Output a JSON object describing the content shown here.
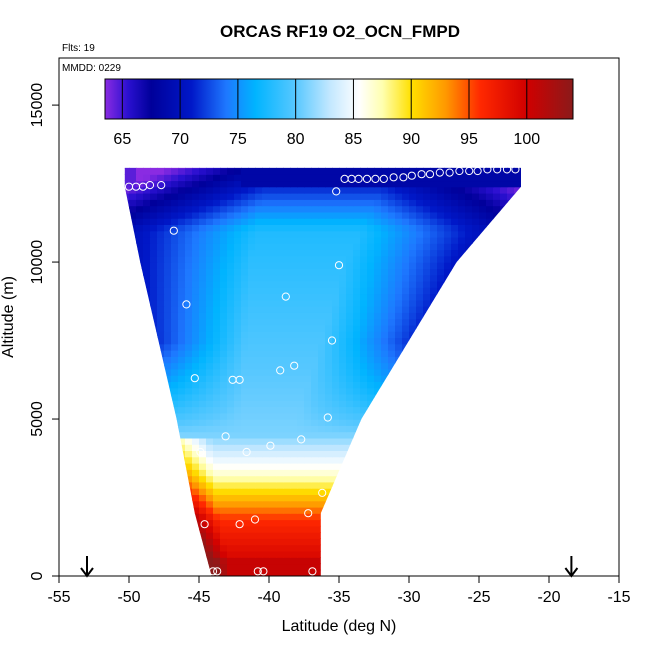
{
  "chart_data": {
    "type": "heatmap",
    "title": "ORCAS RF19 O2_OCN_FMPD",
    "flights_note": "Flts: 19",
    "date_note": "MMDD: 0229",
    "xlabel": "Latitude (deg N)",
    "ylabel": "Altitude (m)",
    "xlim": [
      -55,
      -15
    ],
    "ylim": [
      0,
      16500
    ],
    "x_ticks": [
      -55,
      -50,
      -45,
      -40,
      -35,
      -30,
      -25,
      -20,
      -15
    ],
    "x_tick_labels": [
      "-55",
      "-50",
      "-45",
      "-40",
      "-35",
      "-30",
      "-25",
      "-20",
      "-15"
    ],
    "y_ticks": [
      0,
      5000,
      10000,
      15000
    ],
    "y_tick_labels": [
      "0",
      "5000",
      "10000",
      "15000"
    ],
    "colorbar": {
      "range": [
        63.5,
        104
      ],
      "ticks": [
        65,
        70,
        75,
        80,
        85,
        90,
        95,
        100
      ],
      "tick_labels": [
        "65",
        "70",
        "75",
        "80",
        "85",
        "90",
        "95",
        "100"
      ],
      "stops": [
        {
          "v": 63.5,
          "c": "#8a2be2"
        },
        {
          "v": 65.5,
          "c": "#2a10d0"
        },
        {
          "v": 67.5,
          "c": "#00009a"
        },
        {
          "v": 71,
          "c": "#0018c8"
        },
        {
          "v": 74,
          "c": "#1e78ff"
        },
        {
          "v": 76.5,
          "c": "#00b4ff"
        },
        {
          "v": 80,
          "c": "#58c8ff"
        },
        {
          "v": 83,
          "c": "#c4e8ff"
        },
        {
          "v": 85.5,
          "c": "#ffffff"
        },
        {
          "v": 87.5,
          "c": "#ffffb0"
        },
        {
          "v": 90,
          "c": "#ffe000"
        },
        {
          "v": 93,
          "c": "#ff9800"
        },
        {
          "v": 96,
          "c": "#ff2800"
        },
        {
          "v": 100,
          "c": "#d00000"
        },
        {
          "v": 104,
          "c": "#8b1a1a"
        }
      ]
    },
    "field_region": {
      "description_lat_bounds_by_altitude": [
        {
          "alt": 0,
          "lat_min": -44.1,
          "lat_max": -36.3
        },
        {
          "alt": 2000,
          "lat_min": -45.3,
          "lat_max": -36.3
        },
        {
          "alt": 5000,
          "lat_min": -46.6,
          "lat_max": -33.4
        },
        {
          "alt": 10000,
          "lat_min": -49.2,
          "lat_max": -26.6
        },
        {
          "alt": 12400,
          "lat_min": -50.3,
          "lat_max": -22.0
        },
        {
          "alt": 13000,
          "lat_min": -50.3,
          "lat_max": -22.0
        }
      ]
    },
    "legend_arrows_lat": [
      -53,
      -18.4
    ],
    "observations": [
      {
        "lat": -50,
        "alt": 12400
      },
      {
        "lat": -49.5,
        "alt": 12400
      },
      {
        "lat": -49,
        "alt": 12400
      },
      {
        "lat": -48.5,
        "alt": 12450
      },
      {
        "lat": -47.7,
        "alt": 12450
      },
      {
        "lat": -35.2,
        "alt": 12250
      },
      {
        "lat": -34.6,
        "alt": 12650
      },
      {
        "lat": -34.1,
        "alt": 12650
      },
      {
        "lat": -33.6,
        "alt": 12650
      },
      {
        "lat": -33,
        "alt": 12650
      },
      {
        "lat": -32.4,
        "alt": 12650
      },
      {
        "lat": -31.8,
        "alt": 12650
      },
      {
        "lat": -31.1,
        "alt": 12700
      },
      {
        "lat": -30.4,
        "alt": 12700
      },
      {
        "lat": -29.8,
        "alt": 12750
      },
      {
        "lat": -29.1,
        "alt": 12800
      },
      {
        "lat": -28.5,
        "alt": 12800
      },
      {
        "lat": -27.8,
        "alt": 12850
      },
      {
        "lat": -27.1,
        "alt": 12850
      },
      {
        "lat": -26.4,
        "alt": 12900
      },
      {
        "lat": -25.7,
        "alt": 12900
      },
      {
        "lat": -25.1,
        "alt": 12900
      },
      {
        "lat": -24.4,
        "alt": 12950
      },
      {
        "lat": -23.7,
        "alt": 12950
      },
      {
        "lat": -23,
        "alt": 12950
      },
      {
        "lat": -22.4,
        "alt": 12950
      },
      {
        "lat": -46.8,
        "alt": 11000
      },
      {
        "lat": -35,
        "alt": 9900
      },
      {
        "lat": -38.8,
        "alt": 8900
      },
      {
        "lat": -45.9,
        "alt": 8650
      },
      {
        "lat": -35.5,
        "alt": 7500
      },
      {
        "lat": -38.2,
        "alt": 6700
      },
      {
        "lat": -39.2,
        "alt": 6550
      },
      {
        "lat": -45.3,
        "alt": 6300
      },
      {
        "lat": -42.6,
        "alt": 6250
      },
      {
        "lat": -42.1,
        "alt": 6250
      },
      {
        "lat": -35.8,
        "alt": 5050
      },
      {
        "lat": -43.1,
        "alt": 4450
      },
      {
        "lat": -37.7,
        "alt": 4350
      },
      {
        "lat": -39.9,
        "alt": 4150
      },
      {
        "lat": -44.9,
        "alt": 3950
      },
      {
        "lat": -41.6,
        "alt": 3950
      },
      {
        "lat": -36.2,
        "alt": 2650
      },
      {
        "lat": -37.2,
        "alt": 2000
      },
      {
        "lat": -44.6,
        "alt": 1650
      },
      {
        "lat": -42.1,
        "alt": 1650
      },
      {
        "lat": -41,
        "alt": 1800
      },
      {
        "lat": -44,
        "alt": 150
      },
      {
        "lat": -43.7,
        "alt": 150
      },
      {
        "lat": -40.8,
        "alt": 150
      },
      {
        "lat": -40.4,
        "alt": 150
      },
      {
        "lat": -36.9,
        "alt": 150
      }
    ]
  }
}
